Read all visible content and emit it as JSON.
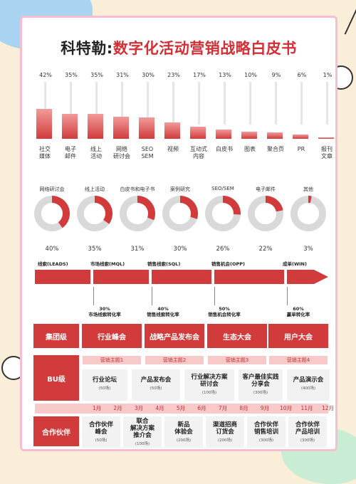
{
  "title": {
    "brand": "科特勒:",
    "rest": "数字化活动营销战略白皮书"
  },
  "channels": [
    {
      "pct": "42%",
      "value": 42,
      "label": "社交\n媒体"
    },
    {
      "pct": "35%",
      "value": 35,
      "label": "电子\n邮件"
    },
    {
      "pct": "35%",
      "value": 35,
      "label": "线上\n活动"
    },
    {
      "pct": "31%",
      "value": 31,
      "label": "网络\n研讨会"
    },
    {
      "pct": "30%",
      "value": 30,
      "label": "SEO\nSEM"
    },
    {
      "pct": "23%",
      "value": 23,
      "label": "视频"
    },
    {
      "pct": "17%",
      "value": 17,
      "label": "互动式\n内容"
    },
    {
      "pct": "13%",
      "value": 13,
      "label": "白皮书"
    },
    {
      "pct": "10%",
      "value": 10,
      "label": "图表"
    },
    {
      "pct": "9%",
      "value": 9,
      "label": "聚合页"
    },
    {
      "pct": "6%",
      "value": 6,
      "label": "PR"
    },
    {
      "pct": "1%",
      "value": 1,
      "label": "报刊\n文章"
    }
  ],
  "donuts": [
    {
      "label": "网络研讨会",
      "pct": "40%",
      "value": 40
    },
    {
      "label": "线上活动",
      "pct": "35%",
      "value": 35
    },
    {
      "label": "白皮书和电子书",
      "pct": "31%",
      "value": 31
    },
    {
      "label": "案例研究",
      "pct": "30%",
      "value": 30
    },
    {
      "label": "SEO/SEM",
      "pct": "26%",
      "value": 26
    },
    {
      "label": "电子邮件",
      "pct": "22%",
      "value": 22
    },
    {
      "label": "其他",
      "pct": "3%",
      "value": 3
    }
  ],
  "funnel": {
    "stages": [
      "线索(LEADS)",
      "市场线索(MQL)",
      "销售线索(SQL)",
      "销售机会(OPP)",
      "成单(WIN)"
    ],
    "conversions": [
      {
        "pct": "30%",
        "label": "市场线索转化率"
      },
      {
        "pct": "40%",
        "label": "销售线索转化率"
      },
      {
        "pct": "50%",
        "label": "销售机会转化率"
      },
      {
        "pct": "60%",
        "label": "赢单转化率"
      }
    ]
  },
  "grid": {
    "group_label": "集团级",
    "group_events": [
      "行业峰会",
      "战略产品发布会",
      "生态大会",
      "用户大会"
    ],
    "themes": [
      "营销主题1",
      "营销主题2",
      "营销主题3",
      "营销主题4"
    ],
    "bu_label": "BU级",
    "bu_events": [
      {
        "name": "行业论坛",
        "count": "(50场)"
      },
      {
        "name": "产品发布会",
        "count": "(50场)"
      },
      {
        "name": "行业解决方案\n研讨会",
        "count": "(100场)"
      },
      {
        "name": "客户最佳实践\n分享会",
        "count": "(300场)"
      },
      {
        "name": "产品演示会",
        "count": "(400场)"
      }
    ],
    "months": [
      "1月",
      "2月",
      "3月",
      "4月",
      "5月",
      "6月",
      "7月",
      "8月",
      "9月",
      "10月",
      "11月",
      "12月"
    ],
    "partner_label": "合作伙伴",
    "partner_events": [
      {
        "name": "合作伙伴\n峰会",
        "count": "(50场)"
      },
      {
        "name": "联合\n解决方案\n推介会",
        "count": "(100场)"
      },
      {
        "name": "新品\n体验会",
        "count": "(200场)"
      },
      {
        "name": "渠道招商\n订货会",
        "count": "(200场)"
      },
      {
        "name": "合作伙伴\n销售培训",
        "count": "(300场)"
      },
      {
        "name": "合作伙伴\n产品培训",
        "count": "(300场)"
      }
    ]
  },
  "colors": {
    "accent": "#d13b3b",
    "light": "#f7c9c9",
    "border": "#f6bfcf"
  }
}
